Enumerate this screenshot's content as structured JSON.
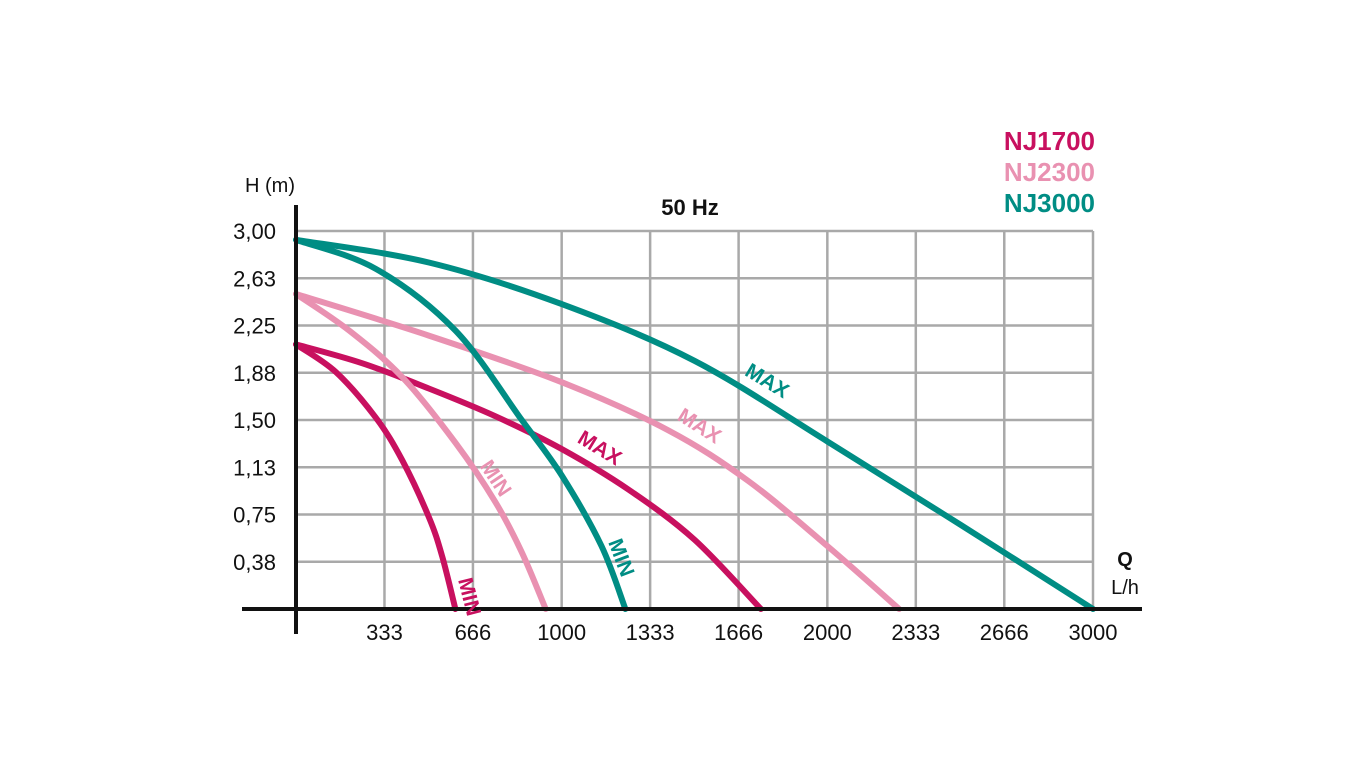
{
  "chart_data": {
    "type": "line",
    "title": "50 Hz",
    "xlabel": "Q",
    "xunit": "L/h",
    "ylabel": "H (m)",
    "xlim": [
      0,
      3000
    ],
    "ylim": [
      0,
      3.0
    ],
    "x_ticks": [
      "333",
      "666",
      "1000",
      "1333",
      "1666",
      "2000",
      "2333",
      "2666",
      "3000"
    ],
    "x_tick_values": [
      333,
      666,
      1000,
      1333,
      1666,
      2000,
      2333,
      2666,
      3000
    ],
    "y_ticks": [
      "3,00",
      "2,63",
      "2,25",
      "1,88",
      "1,50",
      "1,13",
      "0,75",
      "0,38"
    ],
    "y_tick_values": [
      3.0,
      2.625,
      2.25,
      1.875,
      1.5,
      1.125,
      0.75,
      0.375
    ],
    "grid": true,
    "legend_position": "top-right",
    "legend": [
      {
        "label": "NJ1700",
        "color": "#c8105f"
      },
      {
        "label": "NJ2300",
        "color": "#e991b1"
      },
      {
        "label": "NJ3000",
        "color": "#008d84"
      }
    ],
    "series": [
      {
        "model": "NJ1700",
        "label": "MAX",
        "color": "#c8105f",
        "x": [
          0,
          250,
          500,
          750,
          1000,
          1250,
          1500,
          1750
        ],
        "y": [
          2.1,
          1.95,
          1.75,
          1.53,
          1.27,
          0.95,
          0.55,
          0
        ]
      },
      {
        "model": "NJ1700",
        "label": "MIN",
        "color": "#c8105f",
        "x": [
          0,
          150,
          300,
          400,
          500,
          550,
          600
        ],
        "y": [
          2.1,
          1.88,
          1.52,
          1.18,
          0.73,
          0.42,
          0
        ]
      },
      {
        "model": "NJ2300",
        "label": "MAX",
        "color": "#e991b1",
        "x": [
          0,
          500,
          1000,
          1400,
          1700,
          2000,
          2270
        ],
        "y": [
          2.5,
          2.17,
          1.8,
          1.42,
          1.02,
          0.5,
          0
        ]
      },
      {
        "model": "NJ2300",
        "label": "MIN",
        "color": "#e991b1",
        "x": [
          0,
          200,
          400,
          600,
          750,
          850,
          940
        ],
        "y": [
          2.5,
          2.21,
          1.84,
          1.32,
          0.85,
          0.45,
          0
        ]
      },
      {
        "model": "NJ3000",
        "label": "MAX",
        "color": "#008d84",
        "x": [
          0,
          500,
          1000,
          1500,
          2000,
          2500,
          3000
        ],
        "y": [
          2.93,
          2.75,
          2.42,
          1.97,
          1.33,
          0.67,
          0
        ]
      },
      {
        "model": "NJ3000",
        "label": "MIN",
        "color": "#008d84",
        "x": [
          0,
          300,
          600,
          850,
          1000,
          1150,
          1240
        ],
        "y": [
          2.93,
          2.7,
          2.21,
          1.5,
          1.06,
          0.5,
          0
        ]
      }
    ]
  }
}
